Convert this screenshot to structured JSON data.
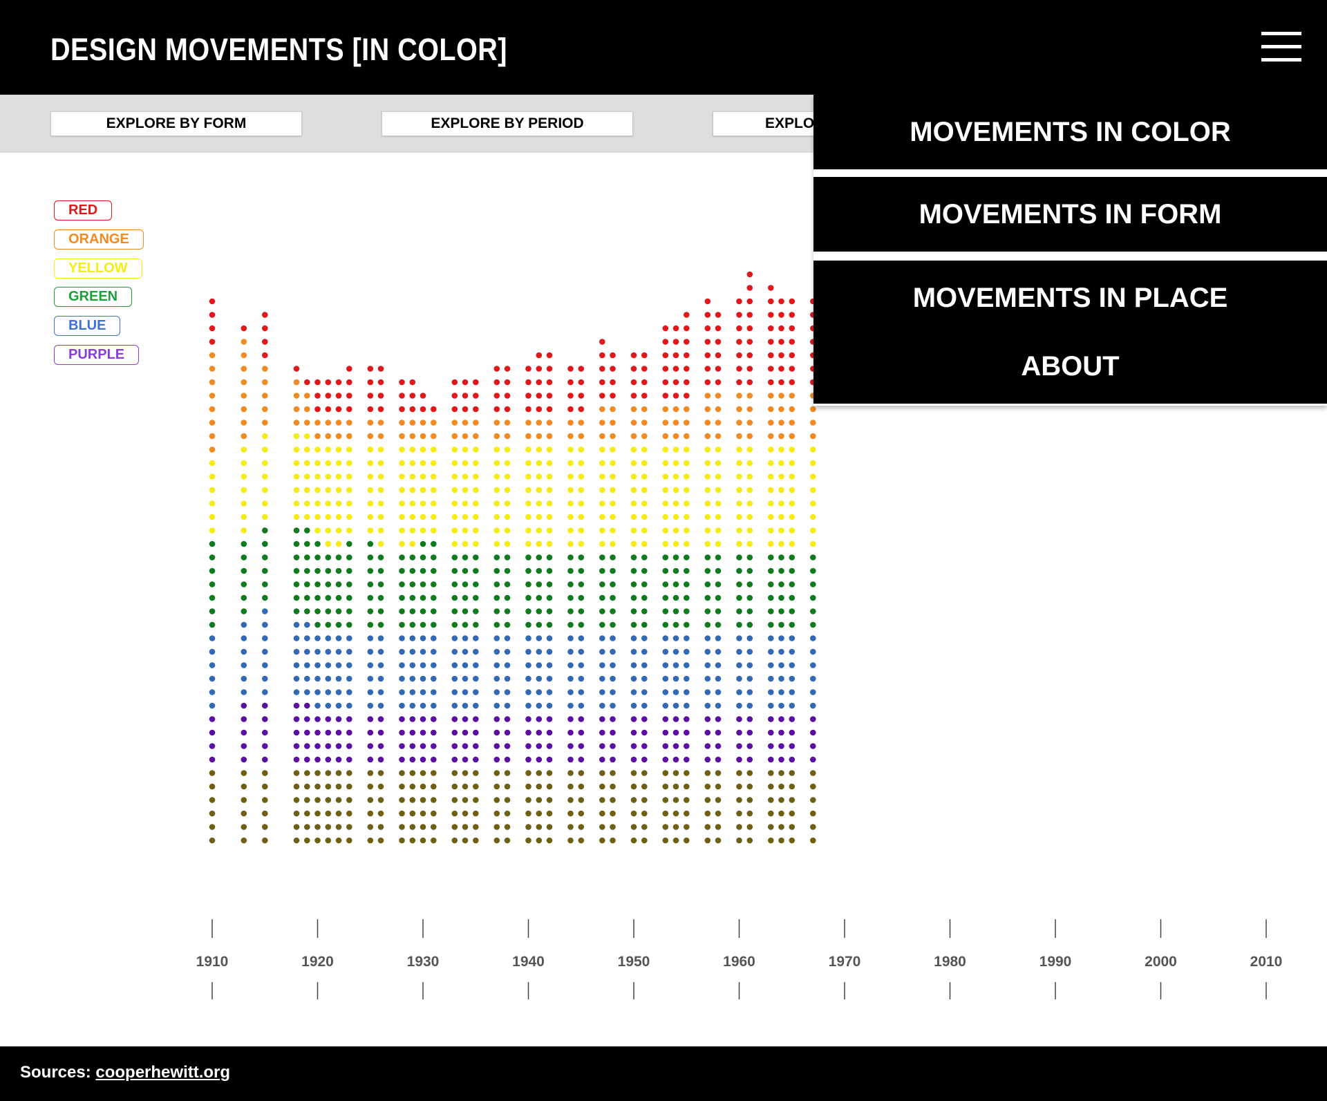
{
  "header": {
    "title": "DESIGN MOVEMENTS [IN COLOR]",
    "menu_icon": "hamburger-menu-icon"
  },
  "subnav": {
    "buttons": [
      {
        "label": "EXPLORE BY FORM"
      },
      {
        "label": "EXPLORE BY PERIOD"
      },
      {
        "label": "EXPLORE BY PLACE"
      }
    ]
  },
  "legend": [
    {
      "label": "RED",
      "color": "#e0181c"
    },
    {
      "label": "ORANGE",
      "color": "#f08a22"
    },
    {
      "label": "YELLOW",
      "color": "#f5ec17"
    },
    {
      "label": "GREEN",
      "color": "#1ca03a"
    },
    {
      "label": "BLUE",
      "color": "#3d73d6"
    },
    {
      "label": "PURPLE",
      "color": "#8a3ed8"
    }
  ],
  "menu": {
    "items": [
      {
        "label": "MOVEMENTS IN COLOR"
      },
      {
        "label": "MOVEMENTS IN FORM"
      },
      {
        "label": "MOVEMENTS IN PLACE"
      },
      {
        "label": "ABOUT"
      }
    ]
  },
  "chart_data": {
    "type": "scatter",
    "description_of_marks": "stacked dot columns per year; each dot is one object colored by dominant color",
    "x_ticks": [
      1910,
      1920,
      1930,
      1940,
      1950,
      1960,
      1970,
      1980,
      1990,
      2000,
      2010
    ],
    "xlim": [
      1910,
      2010
    ],
    "dot_colors": {
      "red": "#e0181c",
      "orange": "#f08a22",
      "yellow": "#f5ec17",
      "green": "#0f7a1e",
      "blue": "#3368b4",
      "purple": "#5a0fa0",
      "olive": "#6e5f12"
    },
    "series_order": [
      "olive",
      "purple",
      "blue",
      "green",
      "yellow",
      "orange",
      "red"
    ],
    "columns": [
      {
        "year": 1910,
        "counts": [
          6,
          4,
          6,
          7,
          6,
          8,
          4
        ]
      },
      {
        "year": 1913,
        "counts": [
          6,
          5,
          6,
          6,
          7,
          8,
          1
        ]
      },
      {
        "year": 1915,
        "counts": [
          6,
          5,
          7,
          6,
          7,
          5,
          4
        ]
      },
      {
        "year": 1918,
        "counts": [
          6,
          5,
          6,
          7,
          7,
          4,
          1
        ]
      },
      {
        "year": 1919,
        "counts": [
          6,
          5,
          6,
          7,
          7,
          3,
          1
        ]
      },
      {
        "year": 1920,
        "counts": [
          6,
          4,
          6,
          7,
          7,
          2,
          3
        ]
      },
      {
        "year": 1921,
        "counts": [
          6,
          4,
          6,
          6,
          8,
          2,
          3
        ]
      },
      {
        "year": 1922,
        "counts": [
          6,
          4,
          6,
          6,
          8,
          2,
          3
        ]
      },
      {
        "year": 1923,
        "counts": [
          6,
          4,
          6,
          7,
          7,
          2,
          4
        ]
      },
      {
        "year": 1925,
        "counts": [
          6,
          4,
          6,
          7,
          7,
          2,
          4
        ]
      },
      {
        "year": 1926,
        "counts": [
          6,
          4,
          6,
          6,
          8,
          2,
          4
        ]
      },
      {
        "year": 1928,
        "counts": [
          6,
          4,
          6,
          6,
          8,
          2,
          3
        ]
      },
      {
        "year": 1929,
        "counts": [
          6,
          4,
          6,
          6,
          8,
          2,
          3
        ]
      },
      {
        "year": 1930,
        "counts": [
          6,
          4,
          6,
          7,
          7,
          2,
          2
        ]
      },
      {
        "year": 1931,
        "counts": [
          6,
          4,
          6,
          7,
          7,
          2,
          1
        ]
      },
      {
        "year": 1933,
        "counts": [
          6,
          4,
          6,
          6,
          8,
          2,
          3
        ]
      },
      {
        "year": 1934,
        "counts": [
          6,
          4,
          6,
          6,
          8,
          2,
          3
        ]
      },
      {
        "year": 1935,
        "counts": [
          6,
          4,
          6,
          6,
          8,
          2,
          3
        ]
      },
      {
        "year": 1937,
        "counts": [
          6,
          4,
          6,
          6,
          8,
          2,
          4
        ]
      },
      {
        "year": 1938,
        "counts": [
          6,
          4,
          6,
          6,
          8,
          2,
          4
        ]
      },
      {
        "year": 1940,
        "counts": [
          6,
          4,
          6,
          6,
          8,
          2,
          4
        ]
      },
      {
        "year": 1941,
        "counts": [
          6,
          4,
          6,
          6,
          8,
          2,
          5
        ]
      },
      {
        "year": 1942,
        "counts": [
          6,
          4,
          6,
          6,
          8,
          2,
          5
        ]
      },
      {
        "year": 1944,
        "counts": [
          6,
          4,
          6,
          6,
          8,
          2,
          4
        ]
      },
      {
        "year": 1945,
        "counts": [
          6,
          4,
          6,
          6,
          8,
          2,
          4
        ]
      },
      {
        "year": 1947,
        "counts": [
          6,
          4,
          6,
          6,
          8,
          3,
          5
        ]
      },
      {
        "year": 1948,
        "counts": [
          6,
          4,
          6,
          6,
          8,
          3,
          4
        ]
      },
      {
        "year": 1950,
        "counts": [
          6,
          4,
          6,
          6,
          8,
          3,
          4
        ]
      },
      {
        "year": 1951,
        "counts": [
          6,
          4,
          6,
          6,
          8,
          3,
          4
        ]
      },
      {
        "year": 1953,
        "counts": [
          6,
          4,
          6,
          6,
          8,
          3,
          6
        ]
      },
      {
        "year": 1954,
        "counts": [
          6,
          4,
          6,
          6,
          8,
          3,
          6
        ]
      },
      {
        "year": 1955,
        "counts": [
          6,
          4,
          6,
          6,
          8,
          3,
          7
        ]
      },
      {
        "year": 1957,
        "counts": [
          6,
          4,
          6,
          6,
          8,
          4,
          7
        ]
      },
      {
        "year": 1958,
        "counts": [
          6,
          4,
          6,
          6,
          8,
          4,
          6
        ]
      },
      {
        "year": 1960,
        "counts": [
          6,
          4,
          6,
          6,
          8,
          4,
          7
        ]
      },
      {
        "year": 1961,
        "counts": [
          6,
          4,
          6,
          6,
          8,
          4,
          9
        ]
      },
      {
        "year": 1963,
        "counts": [
          6,
          4,
          6,
          6,
          8,
          4,
          8
        ]
      },
      {
        "year": 1964,
        "counts": [
          6,
          4,
          6,
          6,
          8,
          4,
          7
        ]
      },
      {
        "year": 1965,
        "counts": [
          6,
          4,
          6,
          6,
          8,
          4,
          7
        ]
      },
      {
        "year": 1967,
        "counts": [
          6,
          4,
          6,
          6,
          8,
          4,
          7
        ]
      }
    ]
  },
  "axis": {
    "tick_labels": [
      "1910",
      "1920",
      "1930",
      "1940",
      "1950",
      "1960",
      "1970",
      "1980",
      "1990",
      "2000",
      "2010"
    ]
  },
  "footer": {
    "prefix": "Sources:",
    "link_text": "cooperhewitt.org"
  }
}
